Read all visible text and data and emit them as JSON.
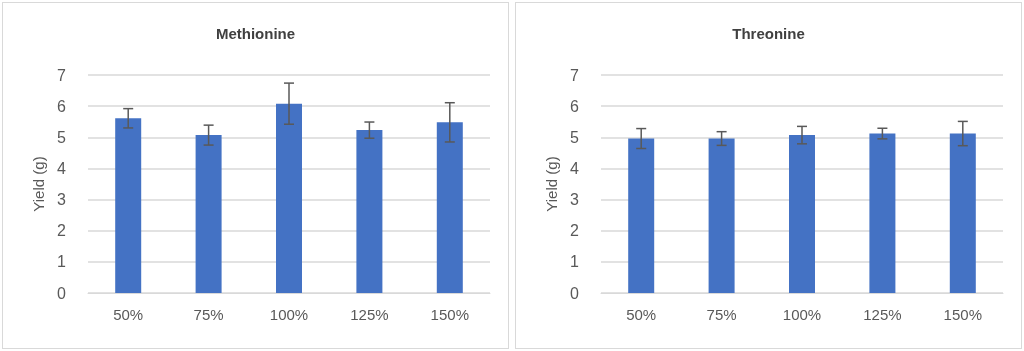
{
  "chart_data": [
    {
      "type": "bar",
      "title": "Methionine",
      "ylabel": "Yield (g)",
      "categories": [
        "50%",
        "75%",
        "100%",
        "125%",
        "150%"
      ],
      "series": [
        {
          "color": "#4472c4",
          "values": [
            5.61,
            5.07,
            6.08,
            5.23,
            5.48
          ],
          "errors": [
            0.31,
            0.32,
            0.66,
            0.26,
            0.63
          ]
        }
      ],
      "ylim": [
        0,
        7
      ],
      "yticks": [
        0,
        1,
        2,
        3,
        4,
        5,
        6,
        7
      ],
      "grid": "y"
    },
    {
      "type": "bar",
      "title": "Threonine",
      "ylabel": "Yield (g)",
      "categories": [
        "50%",
        "75%",
        "100%",
        "125%",
        "150%"
      ],
      "series": [
        {
          "color": "#4472c4",
          "values": [
            4.96,
            4.96,
            5.07,
            5.12,
            5.12
          ],
          "errors": [
            0.32,
            0.22,
            0.28,
            0.17,
            0.39
          ]
        }
      ],
      "ylim": [
        0,
        7
      ],
      "yticks": [
        0,
        1,
        2,
        3,
        4,
        5,
        6,
        7
      ],
      "grid": "y"
    }
  ]
}
